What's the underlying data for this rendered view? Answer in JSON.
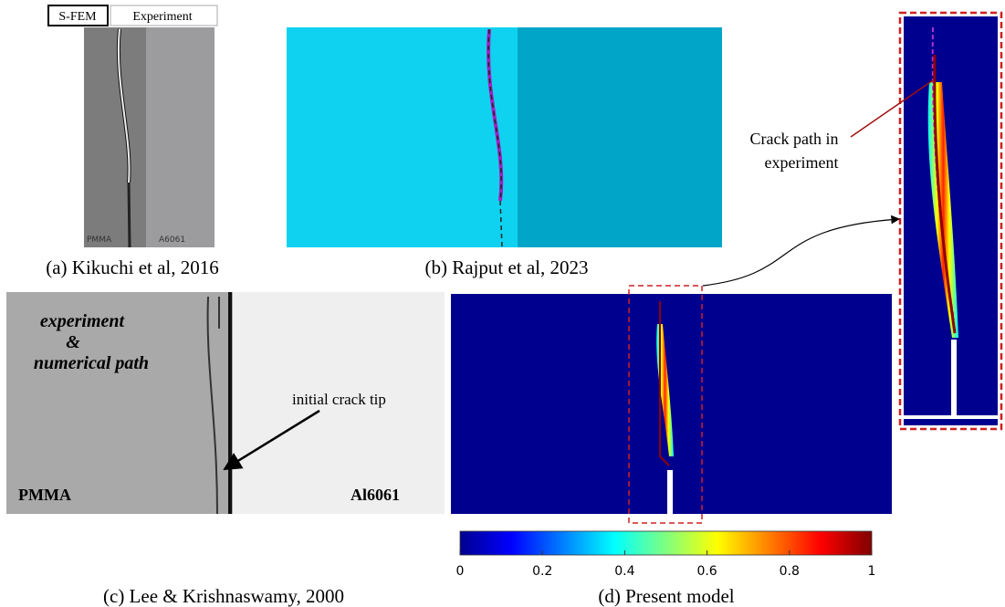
{
  "panels": {
    "a": {
      "legend": [
        "S-FEM",
        "Experiment"
      ],
      "labels": [
        "PMMA",
        "A6061"
      ],
      "caption": "(a) Kikuchi et al, 2016"
    },
    "b": {
      "caption": "(b) Rajput et al, 2023"
    },
    "c": {
      "annotations": [
        "experiment",
        "&",
        "numerical path"
      ],
      "arrow_label": "initial crack tip",
      "labels": [
        "PMMA",
        "Al6061"
      ],
      "caption": "(c) Lee & Krishnaswamy, 2000"
    },
    "d": {
      "colorbar_ticks": [
        0,
        0.2,
        0.4,
        0.6,
        0.8,
        1
      ],
      "zoom_label": [
        "Crack path in",
        "experiment"
      ],
      "caption": "(d) Present model"
    }
  }
}
